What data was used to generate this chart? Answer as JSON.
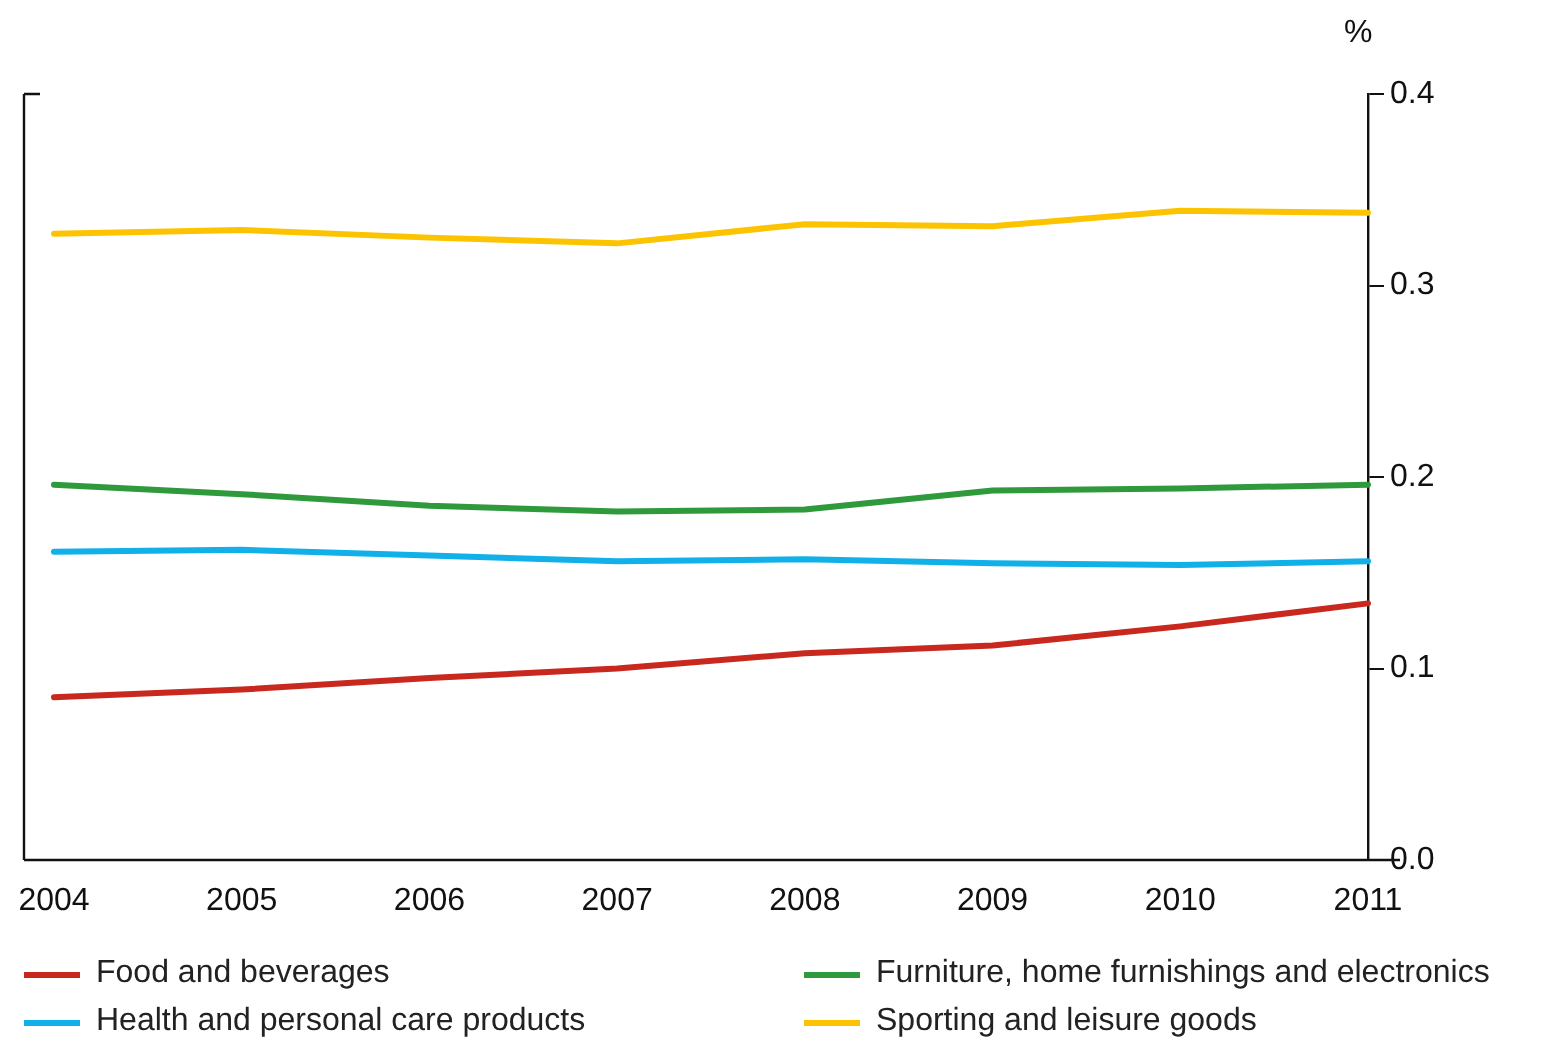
{
  "chart_data": {
    "type": "line",
    "ylabel": "%",
    "categories": [
      "2004",
      "2005",
      "2006",
      "2007",
      "2008",
      "2009",
      "2010",
      "2011"
    ],
    "series": [
      {
        "name": "Food and beverages",
        "color": "#c8281e",
        "values": [
          0.085,
          0.089,
          0.095,
          0.1,
          0.108,
          0.112,
          0.122,
          0.134
        ]
      },
      {
        "name": "Furniture, home furnishings and electronics",
        "color": "#2e9a3c",
        "values": [
          0.196,
          0.191,
          0.185,
          0.182,
          0.183,
          0.193,
          0.194,
          0.196
        ]
      },
      {
        "name": "Health and personal care products",
        "color": "#12b0e8",
        "values": [
          0.161,
          0.162,
          0.159,
          0.156,
          0.157,
          0.155,
          0.154,
          0.156
        ]
      },
      {
        "name": "Sporting and leisure goods",
        "color": "#fcc400",
        "values": [
          0.327,
          0.329,
          0.325,
          0.322,
          0.332,
          0.331,
          0.339,
          0.338
        ]
      }
    ],
    "ylim": [
      0,
      0.4
    ],
    "yticks": [
      {
        "value": 0,
        "label": "0.0"
      },
      0.1,
      0.2,
      0.3,
      0.4
    ],
    "grid": false,
    "legend": "bottom",
    "marker": "none",
    "line_style": "solid"
  }
}
